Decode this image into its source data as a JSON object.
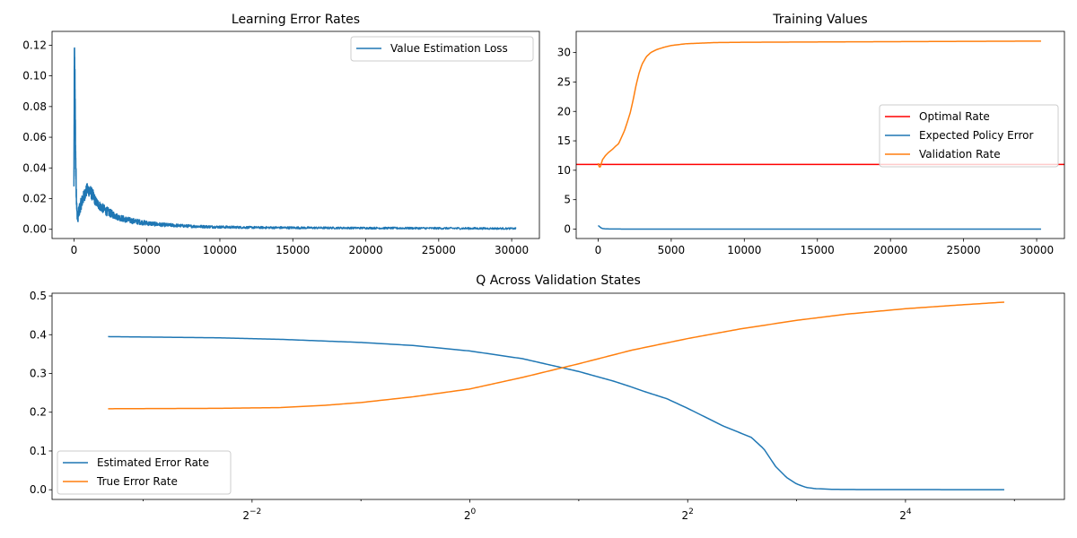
{
  "chart_data": [
    {
      "type": "line",
      "title": "Learning Error Rates",
      "xlabel": "",
      "ylabel": "",
      "xlim": [
        -1500,
        31900
      ],
      "ylim": [
        -0.006,
        0.129
      ],
      "xticks": [
        0,
        5000,
        10000,
        15000,
        20000,
        25000,
        30000
      ],
      "xtick_labels": [
        "0",
        "5000",
        "10000",
        "15000",
        "20000",
        "25000",
        "30000"
      ],
      "yticks": [
        0.0,
        0.02,
        0.04,
        0.06,
        0.08,
        0.1,
        0.12
      ],
      "ytick_labels": [
        "0.00",
        "0.02",
        "0.04",
        "0.06",
        "0.08",
        "0.10",
        "0.12"
      ],
      "grid": false,
      "legend_position": "top-right",
      "series": [
        {
          "name": "Value Estimation Loss",
          "color": "#1f77b4",
          "noisy": true,
          "x": [
            0,
            30,
            60,
            90,
            120,
            150,
            200,
            260,
            350,
            500,
            700,
            900,
            1100,
            1300,
            1500,
            1800,
            2200,
            2600,
            3000,
            3500,
            4000,
            5000,
            6000,
            7000,
            8000,
            10000,
            12000,
            15000,
            18000,
            21000,
            24000,
            27000,
            30300
          ],
          "y": [
            0.03,
            0.115,
            0.1,
            0.07,
            0.045,
            0.03,
            0.012,
            0.007,
            0.012,
            0.017,
            0.022,
            0.026,
            0.025,
            0.022,
            0.018,
            0.015,
            0.012,
            0.01,
            0.008,
            0.0065,
            0.0055,
            0.004,
            0.003,
            0.0025,
            0.002,
            0.0015,
            0.0012,
            0.001,
            0.0009,
            0.0008,
            0.0007,
            0.0006,
            0.0005
          ],
          "noise": [
            0.006,
            0.008,
            0.015,
            0.015,
            0.012,
            0.008,
            0.004,
            0.003,
            0.004,
            0.004,
            0.004,
            0.004,
            0.004,
            0.004,
            0.003,
            0.003,
            0.003,
            0.0025,
            0.002,
            0.002,
            0.0018,
            0.0015,
            0.0012,
            0.001,
            0.0009,
            0.0008,
            0.0007,
            0.0007,
            0.0006,
            0.0006,
            0.0006,
            0.0006,
            0.0005
          ]
        }
      ]
    },
    {
      "type": "line",
      "title": "Training Values",
      "xlabel": "",
      "ylabel": "",
      "xlim": [
        -1500,
        31900
      ],
      "ylim": [
        -1.6,
        33.6
      ],
      "xticks": [
        0,
        5000,
        10000,
        15000,
        20000,
        25000,
        30000
      ],
      "xtick_labels": [
        "0",
        "5000",
        "10000",
        "15000",
        "20000",
        "25000",
        "30000"
      ],
      "yticks": [
        0,
        5,
        10,
        15,
        20,
        25,
        30
      ],
      "ytick_labels": [
        "0",
        "5",
        "10",
        "15",
        "20",
        "25",
        "30"
      ],
      "grid": false,
      "legend_position": "center-right",
      "series": [
        {
          "name": "Optimal Rate",
          "color": "#ff0000",
          "kind": "hline",
          "y": 11
        },
        {
          "name": "Expected Policy Error",
          "color": "#1f77b4",
          "x": [
            0,
            50,
            100,
            200,
            300,
            500,
            800,
            1500,
            3000,
            10000,
            20000,
            30300
          ],
          "y": [
            0.6,
            0.55,
            0.4,
            0.2,
            0.1,
            0.05,
            0.02,
            0.01,
            0.0,
            0.0,
            0.0,
            0.0
          ]
        },
        {
          "name": "Validation Rate",
          "color": "#ff7f0e",
          "x": [
            0,
            60,
            120,
            200,
            300,
            500,
            700,
            1000,
            1200,
            1400,
            1600,
            1800,
            2000,
            2200,
            2400,
            2600,
            2800,
            3000,
            3300,
            3600,
            4000,
            4500,
            5000,
            6000,
            8000,
            10000,
            15000,
            20000,
            25000,
            30300
          ],
          "y": [
            11.2,
            10.7,
            10.3,
            11.0,
            11.8,
            12.5,
            13.0,
            13.6,
            14.1,
            14.5,
            15.6,
            16.7,
            18.2,
            19.8,
            22.0,
            24.5,
            26.5,
            28.0,
            29.3,
            30.0,
            30.5,
            30.9,
            31.2,
            31.5,
            31.7,
            31.75,
            31.8,
            31.85,
            31.9,
            31.95
          ]
        }
      ]
    },
    {
      "type": "line",
      "title": "Q Across Validation States",
      "xlabel": "",
      "ylabel": "",
      "xscale": "log2",
      "xlim": [
        0.07,
        44
      ],
      "ylim": [
        -0.025,
        0.507
      ],
      "xticks": [
        0.25,
        1,
        4,
        16
      ],
      "xtick_labels": [
        [
          "2",
          "−2"
        ],
        [
          "2",
          "0"
        ],
        [
          "2",
          "2"
        ],
        [
          "2",
          "4"
        ]
      ],
      "yticks": [
        0.0,
        0.1,
        0.2,
        0.3,
        0.4,
        0.5
      ],
      "ytick_labels": [
        "0.0",
        "0.1",
        "0.2",
        "0.3",
        "0.4",
        "0.5"
      ],
      "grid": false,
      "legend_position": "lower-left",
      "series": [
        {
          "name": "Estimated Error Rate",
          "color": "#1f77b4",
          "x": [
            0.1,
            0.2,
            0.3,
            0.5,
            0.7,
            1.0,
            1.4,
            2.0,
            2.5,
            2.8,
            3.0,
            3.5,
            4.0,
            5.0,
            6.0,
            6.5,
            7.0,
            7.5,
            8.0,
            8.5,
            9.0,
            10.0,
            12.0,
            20.0,
            30.0
          ],
          "y": [
            0.395,
            0.392,
            0.388,
            0.38,
            0.372,
            0.358,
            0.338,
            0.305,
            0.28,
            0.265,
            0.255,
            0.235,
            0.21,
            0.165,
            0.135,
            0.105,
            0.06,
            0.032,
            0.015,
            0.006,
            0.003,
            0.001,
            0.0005,
            0.0003,
            0.0002
          ]
        },
        {
          "name": "True Error Rate",
          "color": "#ff7f0e",
          "x": [
            0.1,
            0.2,
            0.3,
            0.4,
            0.5,
            0.7,
            1.0,
            1.4,
            2.0,
            2.8,
            4.0,
            5.6,
            8.0,
            11.0,
            16.0,
            22.0,
            30.0
          ],
          "y": [
            0.209,
            0.21,
            0.212,
            0.218,
            0.225,
            0.24,
            0.26,
            0.29,
            0.325,
            0.36,
            0.39,
            0.415,
            0.437,
            0.453,
            0.467,
            0.476,
            0.484
          ]
        }
      ]
    }
  ]
}
